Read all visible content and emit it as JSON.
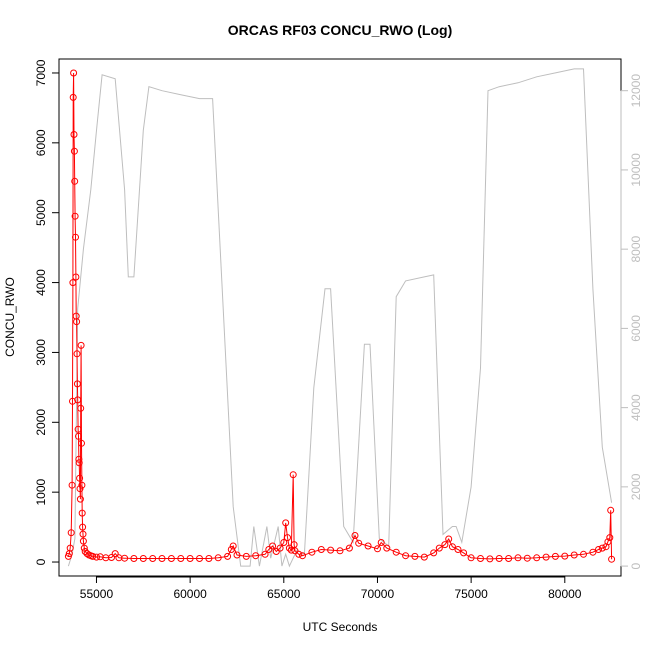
{
  "chart_data": {
    "type": "line",
    "title": "ORCAS RF03 CONCU_RWO (Log)",
    "xlabel": "UTC Seconds",
    "ylabel": "CONCU_RWO",
    "xlim": [
      53000,
      83000
    ],
    "ylim": [
      -200,
      7200
    ],
    "y2lim": [
      -250,
      12800
    ],
    "x_ticks": [
      55000,
      60000,
      65000,
      70000,
      75000,
      80000
    ],
    "y_ticks": [
      0,
      1000,
      2000,
      3000,
      4000,
      5000,
      6000,
      7000
    ],
    "y2_ticks": [
      0,
      2000,
      4000,
      6000,
      8000,
      10000,
      12000
    ],
    "colors": {
      "primary": "#ff0000",
      "secondary": "#bebebe",
      "axes": "#000000"
    },
    "series": [
      {
        "axis": "left",
        "style": "line+circles",
        "x": [
          53500,
          53550,
          53600,
          53650,
          53700,
          53720,
          53740,
          53760,
          53780,
          53800,
          53820,
          53840,
          53860,
          53880,
          53900,
          53920,
          53940,
          53960,
          53980,
          54000,
          54020,
          54040,
          54060,
          54080,
          54100,
          54120,
          54140,
          54160,
          54180,
          54200,
          54220,
          54240,
          54260,
          54280,
          54300,
          54350,
          54400,
          54500,
          54600,
          54700,
          54800,
          55000,
          55200,
          55500,
          55800,
          56000,
          56200,
          56500,
          57000,
          57500,
          58000,
          58500,
          59000,
          59500,
          60000,
          60500,
          61000,
          61500,
          62000,
          62200,
          62300,
          62500,
          63000,
          63500,
          64000,
          64200,
          64400,
          64600,
          64800,
          65000,
          65100,
          65200,
          65300,
          65400,
          65500,
          65550,
          65600,
          65800,
          66000,
          66500,
          67000,
          67500,
          68000,
          68500,
          68800,
          69000,
          69500,
          70000,
          70200,
          70500,
          71000,
          71500,
          72000,
          72500,
          73000,
          73300,
          73600,
          73800,
          74000,
          74300,
          74600,
          75000,
          75500,
          76000,
          76500,
          77000,
          77500,
          78000,
          78500,
          79000,
          79500,
          80000,
          80500,
          81000,
          81500,
          81800,
          82000,
          82200,
          82300,
          82400,
          82450,
          82500
        ],
        "y": [
          80,
          120,
          200,
          420,
          1100,
          2300,
          4000,
          6650,
          7000,
          6120,
          5880,
          5450,
          4950,
          4650,
          4080,
          3520,
          3440,
          2980,
          2550,
          2320,
          1900,
          1800,
          1470,
          1420,
          1200,
          1050,
          900,
          2200,
          3100,
          1700,
          1100,
          700,
          500,
          400,
          300,
          200,
          150,
          120,
          100,
          90,
          80,
          70,
          75,
          60,
          65,
          120,
          60,
          55,
          50,
          50,
          50,
          50,
          50,
          50,
          50,
          50,
          50,
          60,
          80,
          180,
          230,
          100,
          80,
          90,
          110,
          180,
          230,
          150,
          200,
          280,
          560,
          350,
          200,
          170,
          1250,
          250,
          160,
          110,
          90,
          140,
          180,
          170,
          160,
          200,
          380,
          270,
          230,
          190,
          280,
          200,
          140,
          90,
          80,
          70,
          130,
          200,
          250,
          330,
          220,
          180,
          130,
          60,
          50,
          45,
          50,
          50,
          60,
          55,
          60,
          70,
          80,
          85,
          100,
          110,
          140,
          180,
          200,
          220,
          290,
          350,
          740,
          40
        ]
      },
      {
        "axis": "right",
        "style": "line",
        "x": [
          53500,
          53700,
          53850,
          54000,
          54300,
          54700,
          55000,
          55300,
          56000,
          56500,
          56700,
          57000,
          57500,
          57800,
          58500,
          59500,
          60500,
          61200,
          62300,
          62700,
          63200,
          63400,
          63700,
          64100,
          64300,
          64700,
          64900,
          65100,
          65300,
          65700,
          66100,
          66600,
          67200,
          67500,
          68200,
          68700,
          69300,
          69600,
          70100,
          70600,
          71000,
          71500,
          72500,
          73000,
          73500,
          74000,
          74200,
          74500,
          75000,
          75500,
          75900,
          76500,
          77500,
          78500,
          79500,
          80500,
          81000,
          81500,
          82000,
          82500
        ],
        "y": [
          0,
          300,
          700,
          6500,
          8000,
          9500,
          11000,
          12400,
          12300,
          9500,
          7300,
          7300,
          11000,
          12100,
          12000,
          11900,
          11800,
          11800,
          1500,
          0,
          0,
          1000,
          0,
          1000,
          200,
          1000,
          0,
          300,
          0,
          400,
          300,
          4500,
          7000,
          7000,
          1000,
          600,
          5600,
          5600,
          700,
          500,
          6800,
          7200,
          7300,
          7350,
          800,
          1000,
          1000,
          600,
          2000,
          5000,
          12000,
          12100,
          12200,
          12350,
          12450,
          12550,
          12550,
          7000,
          3000,
          1600
        ]
      }
    ]
  }
}
